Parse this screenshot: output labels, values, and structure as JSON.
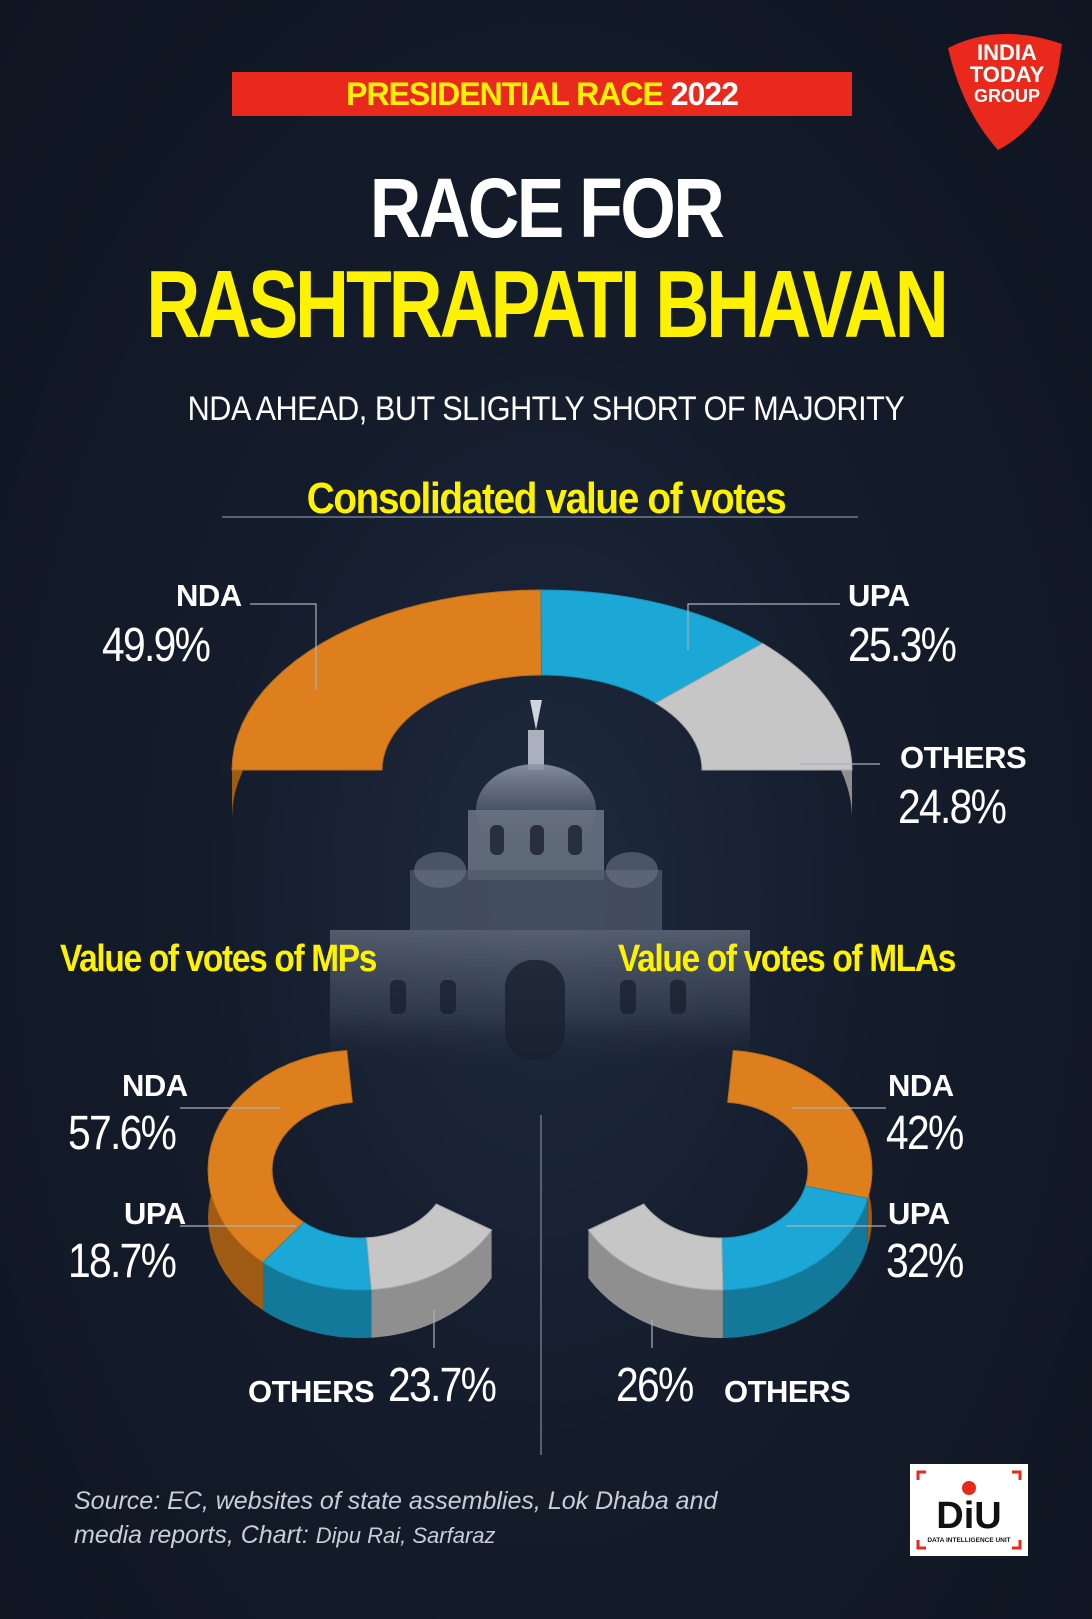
{
  "header": {
    "tag_yellow": "PRESIDENTIAL RACE",
    "tag_white": "2022",
    "logo_lines": [
      "INDIA",
      "TODAY",
      "GROUP"
    ],
    "title_line1": "RACE FOR",
    "title_line2": "RASHTRAPATI BHAVAN",
    "subtitle": "NDA AHEAD, BUT SLIGHTLY SHORT OF MAJORITY"
  },
  "footer": {
    "source_line1": "Source: EC, websites of state assemblies, Lok Dhaba and",
    "source_line2_italic": "media reports, Chart:",
    "source_line2_credit": "Dipu Rai, Sarfaraz",
    "diu_text": "DiU",
    "diu_sub": "DATA INTELLIGENCE UNIT"
  },
  "colors": {
    "NDA": "#dd7f1c",
    "UPA": "#1ba8d6",
    "OTHERS": "#c6c6c6",
    "accent_yellow": "#fff200",
    "accent_red": "#e8291c"
  },
  "chart_data": [
    {
      "type": "pie",
      "title": "Consolidated value of votes",
      "labels": [
        "NDA",
        "UPA",
        "OTHERS"
      ],
      "values": [
        49.9,
        25.3,
        24.8
      ],
      "value_labels": [
        "49.9%",
        "25.3%",
        "24.8%"
      ]
    },
    {
      "type": "pie",
      "title": "Value of votes of MPs",
      "labels": [
        "NDA",
        "UPA",
        "OTHERS"
      ],
      "values": [
        57.6,
        18.7,
        23.7
      ],
      "value_labels": [
        "57.6%",
        "18.7%",
        "23.7%"
      ]
    },
    {
      "type": "pie",
      "title": "Value of votes of MLAs",
      "labels": [
        "NDA",
        "UPA",
        "OTHERS"
      ],
      "values": [
        42,
        32,
        26
      ],
      "value_labels": [
        "42%",
        "32%",
        "26%"
      ]
    }
  ]
}
